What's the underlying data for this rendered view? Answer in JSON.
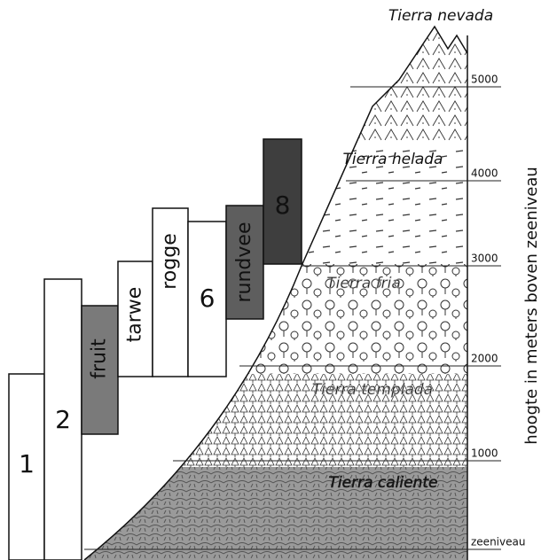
{
  "zones": [
    "Tierra nevada",
    "Tierra helada",
    "Tierra fria",
    "Tierra templada",
    "Tierra caliente"
  ],
  "altitudes": [
    "5000",
    "4000",
    "3000",
    "2000",
    "1000",
    "zeeniveau"
  ],
  "axis_label": "hoogte in meters boven zeeniveau",
  "bars": [
    "1",
    "2",
    "fruit",
    "tarwe",
    "rogge",
    "6",
    "rundvee",
    "8"
  ]
}
